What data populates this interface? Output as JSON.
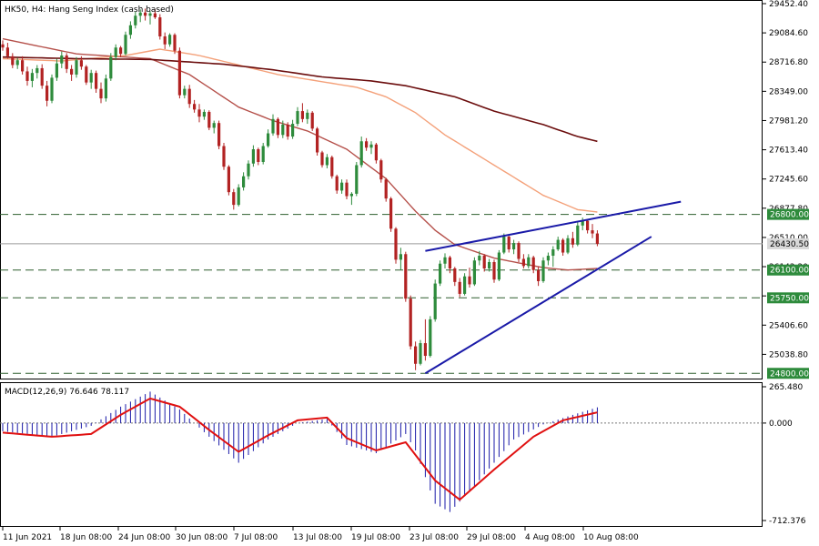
{
  "header": {
    "symbol_label": "HK50, H4:  Hang Seng Index (cash based)",
    "macd_label": "MACD(12,26,9) 76.646 78.117"
  },
  "colors": {
    "bull_candle": "#2e8b3c",
    "bear_candle": "#b22222",
    "ma_fast": "#b5504a",
    "ma_mid": "#f4a17a",
    "ma_slow": "#6b0d0d",
    "trendlines": "#1a1aa8",
    "level_lines": "#2e5e2e",
    "last_price_line": "#9a9a9a",
    "macd_histogram": "#1a1aa8",
    "macd_signal": "#e01010",
    "highlight_label_bg": "#2e8b3c",
    "price_label_bg": "#d8d8d8"
  },
  "chart_data": [
    {
      "type": "candlestick",
      "title": "HK50, H4:  Hang Seng Index (cash based)",
      "x_ticks": [
        "11 Jun 2021",
        "18 Jun 08:00",
        "24 Jun 08:00",
        "30 Jun 08:00",
        "7 Jul 08:00",
        "13 Jul 08:00",
        "19 Jul 08:00",
        "23 Jul 08:00",
        "29 Jul 08:00",
        "4 Aug 08:00",
        "10 Aug 08:00"
      ],
      "y_ticks": [
        29452.4,
        29084.6,
        28716.8,
        28349.0,
        27981.2,
        27613.4,
        27245.6,
        26877.8,
        26510.0,
        26142.2,
        25774.4,
        25406.6,
        25038.8
      ],
      "ylim": [
        24780,
        29452.4
      ],
      "grid": false,
      "ohlc": [
        [
          28940,
          28990,
          28860,
          28900
        ],
        [
          28900,
          28960,
          28760,
          28790
        ],
        [
          28790,
          28830,
          28640,
          28680
        ],
        [
          28680,
          28770,
          28630,
          28740
        ],
        [
          28740,
          28790,
          28560,
          28600
        ],
        [
          28600,
          28660,
          28420,
          28480
        ],
        [
          28480,
          28630,
          28400,
          28580
        ],
        [
          28580,
          28680,
          28510,
          28640
        ],
        [
          28640,
          28690,
          28380,
          28420
        ],
        [
          28420,
          28480,
          28160,
          28230
        ],
        [
          28230,
          28560,
          28200,
          28520
        ],
        [
          28520,
          28760,
          28480,
          28700
        ],
        [
          28700,
          28850,
          28640,
          28800
        ],
        [
          28800,
          28830,
          28580,
          28630
        ],
        [
          28630,
          28680,
          28480,
          28560
        ],
        [
          28560,
          28780,
          28520,
          28740
        ],
        [
          28740,
          28790,
          28620,
          28660
        ],
        [
          28660,
          28680,
          28430,
          28460
        ],
        [
          28460,
          28620,
          28380,
          28580
        ],
        [
          28580,
          28610,
          28330,
          28380
        ],
        [
          28380,
          28460,
          28200,
          28260
        ],
        [
          28260,
          28560,
          28220,
          28510
        ],
        [
          28510,
          28830,
          28480,
          28780
        ],
        [
          28780,
          28940,
          28740,
          28900
        ],
        [
          28900,
          28920,
          28780,
          28820
        ],
        [
          28820,
          29100,
          28800,
          29060
        ],
        [
          29060,
          29230,
          29010,
          29180
        ],
        [
          29180,
          29350,
          29140,
          29300
        ],
        [
          29300,
          29380,
          29220,
          29340
        ],
        [
          29340,
          29390,
          29240,
          29300
        ],
        [
          29300,
          29360,
          29190,
          29330
        ],
        [
          29330,
          29380,
          29260,
          29280
        ],
        [
          29280,
          29320,
          29000,
          29040
        ],
        [
          29040,
          29090,
          28880,
          28940
        ],
        [
          28940,
          29080,
          28910,
          29060
        ],
        [
          29060,
          29080,
          28820,
          28860
        ],
        [
          28860,
          28900,
          28260,
          28300
        ],
        [
          28300,
          28420,
          28260,
          28380
        ],
        [
          28380,
          28430,
          28140,
          28190
        ],
        [
          28190,
          28240,
          28080,
          28120
        ],
        [
          28120,
          28190,
          27960,
          28030
        ],
        [
          28030,
          28120,
          27990,
          28090
        ],
        [
          28090,
          28110,
          27860,
          27890
        ],
        [
          27890,
          27980,
          27820,
          27950
        ],
        [
          27950,
          27980,
          27620,
          27660
        ],
        [
          27660,
          27700,
          27360,
          27400
        ],
        [
          27400,
          27420,
          27040,
          27080
        ],
        [
          27080,
          27120,
          26860,
          26920
        ],
        [
          26920,
          27180,
          26900,
          27140
        ],
        [
          27140,
          27330,
          27100,
          27280
        ],
        [
          27280,
          27480,
          27240,
          27440
        ],
        [
          27440,
          27670,
          27400,
          27620
        ],
        [
          27620,
          27640,
          27420,
          27460
        ],
        [
          27460,
          27700,
          27430,
          27660
        ],
        [
          27660,
          27870,
          27640,
          27820
        ],
        [
          27820,
          28060,
          27790,
          28000
        ],
        [
          28000,
          28020,
          27760,
          27800
        ],
        [
          27800,
          27980,
          27760,
          27930
        ],
        [
          27930,
          27960,
          27740,
          27780
        ],
        [
          27780,
          27990,
          27750,
          27940
        ],
        [
          27940,
          28150,
          27910,
          28100
        ],
        [
          28100,
          28200,
          27960,
          28000
        ],
        [
          28000,
          28120,
          27940,
          28080
        ],
        [
          28080,
          28100,
          27850,
          27880
        ],
        [
          27880,
          27900,
          27540,
          27580
        ],
        [
          27580,
          27600,
          27390,
          27420
        ],
        [
          27420,
          27560,
          27380,
          27520
        ],
        [
          27520,
          27540,
          27250,
          27280
        ],
        [
          27280,
          27300,
          27060,
          27100
        ],
        [
          27100,
          27240,
          27060,
          27200
        ],
        [
          27200,
          27240,
          26990,
          27030
        ],
        [
          27030,
          27080,
          26920,
          27060
        ],
        [
          27060,
          27460,
          27030,
          27420
        ],
        [
          27420,
          27780,
          27390,
          27720
        ],
        [
          27720,
          27760,
          27600,
          27640
        ],
        [
          27640,
          27720,
          27560,
          27680
        ],
        [
          27680,
          27700,
          27440,
          27480
        ],
        [
          27480,
          27500,
          27200,
          27240
        ],
        [
          27240,
          27260,
          26960,
          27000
        ],
        [
          27000,
          27020,
          26580,
          26620
        ],
        [
          26620,
          26640,
          26180,
          26230
        ],
        [
          26230,
          26380,
          26100,
          26300
        ],
        [
          26300,
          26330,
          25700,
          25740
        ],
        [
          25740,
          25780,
          25100,
          25140
        ],
        [
          25140,
          25200,
          24840,
          24920
        ],
        [
          24920,
          25220,
          24900,
          25180
        ],
        [
          25180,
          25480,
          24960,
          25020
        ],
        [
          25020,
          25520,
          25000,
          25480
        ],
        [
          25480,
          25980,
          25450,
          25930
        ],
        [
          25930,
          26220,
          25900,
          26180
        ],
        [
          26180,
          26310,
          26120,
          26260
        ],
        [
          26260,
          26280,
          26060,
          26120
        ],
        [
          26120,
          26140,
          25900,
          25950
        ],
        [
          25950,
          26000,
          25760,
          25800
        ],
        [
          25800,
          26060,
          25780,
          26020
        ],
        [
          26020,
          26130,
          25880,
          25920
        ],
        [
          25920,
          26260,
          25900,
          26220
        ],
        [
          26220,
          26340,
          26160,
          26280
        ],
        [
          26280,
          26300,
          26080,
          26120
        ],
        [
          26120,
          26240,
          26080,
          26200
        ],
        [
          26200,
          26230,
          25940,
          25980
        ],
        [
          25980,
          26350,
          25960,
          26320
        ],
        [
          26320,
          26560,
          26300,
          26520
        ],
        [
          26520,
          26540,
          26320,
          26360
        ],
        [
          26360,
          26480,
          26300,
          26440
        ],
        [
          26440,
          26460,
          26200,
          26240
        ],
        [
          26240,
          26300,
          26120,
          26150
        ],
        [
          26150,
          26300,
          26120,
          26260
        ],
        [
          26260,
          26280,
          26060,
          26100
        ],
        [
          26100,
          26140,
          25900,
          25960
        ],
        [
          25960,
          26260,
          25940,
          26220
        ],
        [
          26220,
          26320,
          26160,
          26280
        ],
        [
          26280,
          26400,
          26140,
          26360
        ],
        [
          26360,
          26520,
          26340,
          26480
        ],
        [
          26480,
          26500,
          26280,
          26320
        ],
        [
          26320,
          26540,
          26300,
          26500
        ],
        [
          26500,
          26580,
          26380,
          26420
        ],
        [
          26420,
          26700,
          26400,
          26660
        ],
        [
          26660,
          26760,
          26600,
          26720
        ],
        [
          26720,
          26740,
          26560,
          26600
        ],
        [
          26600,
          26680,
          26500,
          26560
        ],
        [
          26560,
          26600,
          26400,
          26430
        ]
      ],
      "moving_averages": [
        {
          "color": "#b5504a",
          "anchors": [
            [
              0,
              29010
            ],
            [
              15,
              28820
            ],
            [
              30,
              28760
            ],
            [
              38,
              28560
            ],
            [
              48,
              28150
            ],
            [
              55,
              27980
            ],
            [
              62,
              27850
            ],
            [
              70,
              27620
            ],
            [
              78,
              27250
            ],
            [
              84,
              26840
            ],
            [
              88,
              26600
            ],
            [
              92,
              26420
            ],
            [
              100,
              26250
            ],
            [
              110,
              26130
            ],
            [
              115,
              26100
            ],
            [
              121,
              26120
            ]
          ]
        },
        {
          "color": "#f4a17a",
          "anchors": [
            [
              0,
              28760
            ],
            [
              12,
              28730
            ],
            [
              25,
              28800
            ],
            [
              32,
              28880
            ],
            [
              40,
              28800
            ],
            [
              48,
              28680
            ],
            [
              56,
              28560
            ],
            [
              64,
              28480
            ],
            [
              72,
              28400
            ],
            [
              78,
              28280
            ],
            [
              84,
              28080
            ],
            [
              90,
              27800
            ],
            [
              100,
              27420
            ],
            [
              110,
              27040
            ],
            [
              117,
              26860
            ],
            [
              121,
              26830
            ]
          ]
        },
        {
          "color": "#6b0d0d",
          "anchors": [
            [
              0,
              28780
            ],
            [
              15,
              28760
            ],
            [
              30,
              28750
            ],
            [
              45,
              28690
            ],
            [
              55,
              28620
            ],
            [
              65,
              28530
            ],
            [
              75,
              28480
            ],
            [
              82,
              28420
            ],
            [
              92,
              28280
            ],
            [
              100,
              28100
            ],
            [
              110,
              27930
            ],
            [
              117,
              27780
            ],
            [
              121,
              27720
            ]
          ]
        }
      ],
      "horizontal_levels": [
        {
          "value": 26800.0,
          "label": "26800.00"
        },
        {
          "value": 26100.0,
          "label": "26100.00"
        },
        {
          "value": 25750.0,
          "label": "25750.00"
        },
        {
          "value": 24800.0,
          "label": "24800.00"
        }
      ],
      "last_price": {
        "value": 26430.5,
        "label": "26430.50"
      },
      "trendlines": [
        {
          "from": [
            86,
            26340
          ],
          "to": [
            138,
            26960
          ]
        },
        {
          "from": [
            86,
            24800
          ],
          "to": [
            132,
            26520
          ]
        }
      ]
    },
    {
      "type": "macd",
      "title": "MACD(12,26,9) 76.646 78.117",
      "parameters": [
        12,
        26,
        9
      ],
      "main": 76.646,
      "signal": 78.117,
      "y_ticks": [
        265.48,
        0.0,
        -712.376
      ],
      "ylim": [
        -712.376,
        265.48
      ],
      "histogram_anchors": [
        [
          0,
          -60
        ],
        [
          10,
          -100
        ],
        [
          18,
          -20
        ],
        [
          24,
          120
        ],
        [
          30,
          230
        ],
        [
          36,
          100
        ],
        [
          42,
          -100
        ],
        [
          48,
          -290
        ],
        [
          54,
          -120
        ],
        [
          60,
          0
        ],
        [
          66,
          30
        ],
        [
          70,
          -160
        ],
        [
          76,
          -220
        ],
        [
          82,
          -80
        ],
        [
          84,
          -200
        ],
        [
          88,
          -590
        ],
        [
          91,
          -650
        ],
        [
          96,
          -460
        ],
        [
          104,
          -120
        ],
        [
          110,
          -10
        ],
        [
          116,
          60
        ],
        [
          121,
          115
        ]
      ],
      "signal_anchors": [
        [
          0,
          -70
        ],
        [
          10,
          -100
        ],
        [
          18,
          -80
        ],
        [
          24,
          60
        ],
        [
          30,
          180
        ],
        [
          36,
          120
        ],
        [
          42,
          -50
        ],
        [
          48,
          -210
        ],
        [
          54,
          -90
        ],
        [
          60,
          20
        ],
        [
          66,
          40
        ],
        [
          70,
          -110
        ],
        [
          76,
          -200
        ],
        [
          82,
          -140
        ],
        [
          88,
          -420
        ],
        [
          93,
          -560
        ],
        [
          100,
          -340
        ],
        [
          108,
          -100
        ],
        [
          114,
          20
        ],
        [
          121,
          78
        ]
      ]
    }
  ]
}
